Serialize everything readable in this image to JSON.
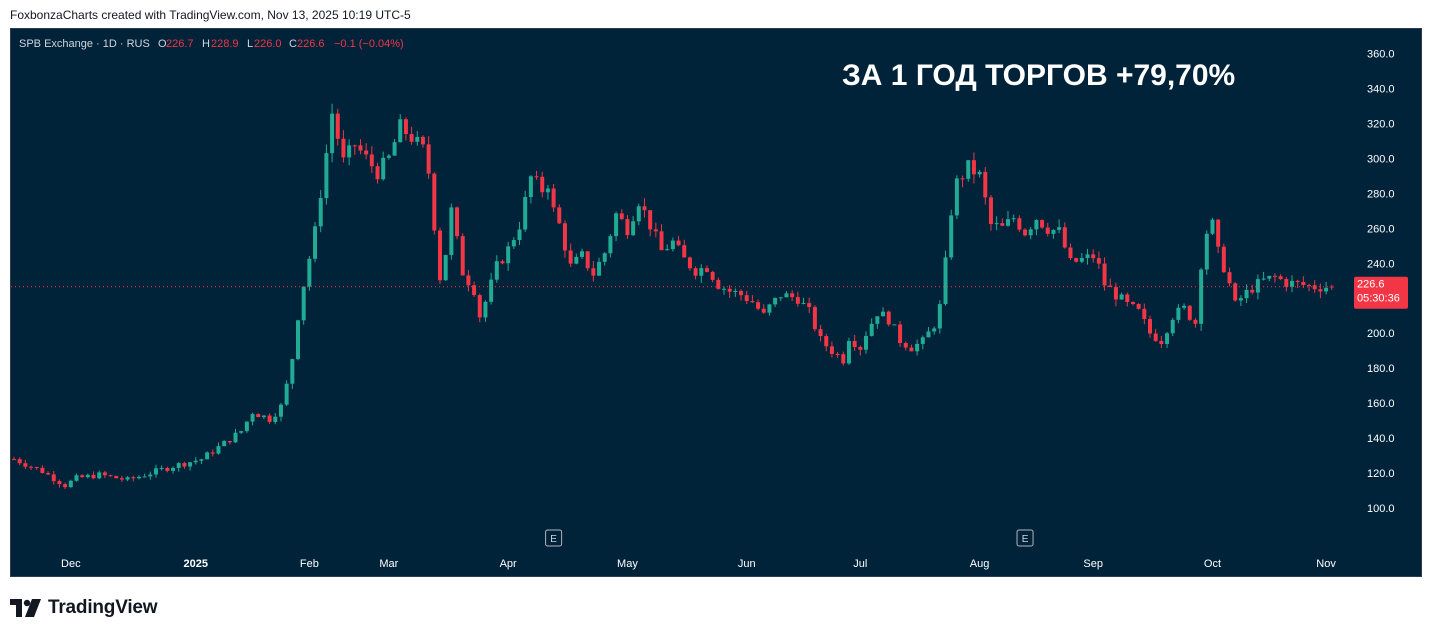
{
  "header": {
    "attribution": "FoxbonzaCharts created with TradingView.com, Nov 13, 2025 10:19 UTC-5"
  },
  "legend": {
    "symbol": "SPB Exchange · 1D · RUS",
    "o_label": "O",
    "o_value": "226.7",
    "h_label": "H",
    "h_value": "228.9",
    "l_label": "L",
    "l_value": "226.0",
    "c_label": "C",
    "c_value": "226.6",
    "change": "−0.1 (−0.04%)"
  },
  "annotation": "ЗА 1 ГОД ТОРГОВ +79,70%",
  "price_marker": {
    "price": "226.6",
    "countdown": "05:30:36"
  },
  "earnings_marker": "E",
  "footer": {
    "brand": "TradingView"
  },
  "colors": {
    "background": "#00233a",
    "up": "#22ab94",
    "down": "#f23645",
    "axis_text": "#ffffff",
    "price_line": "#f23645"
  },
  "chart_data": {
    "type": "candlestick",
    "title": "ЗА 1 ГОД ТОРГОВ +79,70%",
    "symbol": "SPB Exchange · 1D · RUS",
    "y_ticks": [
      "100.0",
      "120.0",
      "140.0",
      "160.0",
      "180.0",
      "200.0",
      "220.0",
      "240.0",
      "260.0",
      "280.0",
      "300.0",
      "320.0",
      "340.0",
      "360.0"
    ],
    "ylim": [
      88,
      366
    ],
    "x_labels": [
      "Dec",
      "2025",
      "Feb",
      "Mar",
      "Apr",
      "May",
      "Jun",
      "Jul",
      "Aug",
      "Sep",
      "Oct",
      "Nov"
    ],
    "x_label_bars": [
      10,
      32,
      52,
      66,
      87,
      108,
      129,
      149,
      170,
      190,
      211,
      231
    ],
    "earnings_bars": [
      95,
      178
    ],
    "last_price": 226.6,
    "bar_count": 233,
    "price_keypoints": [
      [
        0,
        128
      ],
      [
        5,
        121
      ],
      [
        9,
        113
      ],
      [
        11,
        117
      ],
      [
        15,
        119
      ],
      [
        20,
        116
      ],
      [
        24,
        120
      ],
      [
        28,
        124
      ],
      [
        33,
        128
      ],
      [
        37,
        137
      ],
      [
        40,
        144
      ],
      [
        42,
        155
      ],
      [
        45,
        151
      ],
      [
        47,
        158
      ],
      [
        48,
        170
      ],
      [
        49,
        186
      ],
      [
        50,
        210
      ],
      [
        51,
        228
      ],
      [
        53,
        258
      ],
      [
        55,
        303
      ],
      [
        56,
        326
      ],
      [
        58,
        298
      ],
      [
        60,
        308
      ],
      [
        62,
        300
      ],
      [
        64,
        292
      ],
      [
        66,
        300
      ],
      [
        68,
        318
      ],
      [
        70,
        312
      ],
      [
        72,
        305
      ],
      [
        73,
        292
      ],
      [
        74,
        262
      ],
      [
        75,
        232
      ],
      [
        76,
        246
      ],
      [
        77,
        270
      ],
      [
        79,
        235
      ],
      [
        81,
        225
      ],
      [
        82,
        210
      ],
      [
        83,
        218
      ],
      [
        85,
        238
      ],
      [
        87,
        248
      ],
      [
        89,
        262
      ],
      [
        91,
        289
      ],
      [
        93,
        282
      ],
      [
        94,
        286
      ],
      [
        95,
        270
      ],
      [
        96,
        262
      ],
      [
        98,
        238
      ],
      [
        100,
        244
      ],
      [
        102,
        234
      ],
      [
        104,
        246
      ],
      [
        106,
        268
      ],
      [
        108,
        260
      ],
      [
        110,
        276
      ],
      [
        112,
        262
      ],
      [
        114,
        247
      ],
      [
        116,
        252
      ],
      [
        118,
        242
      ],
      [
        120,
        236
      ],
      [
        122,
        238
      ],
      [
        124,
        228
      ],
      [
        126,
        224
      ],
      [
        128,
        222
      ],
      [
        130,
        218
      ],
      [
        132,
        210
      ],
      [
        133,
        215
      ],
      [
        135,
        222
      ],
      [
        138,
        220
      ],
      [
        140,
        212
      ],
      [
        142,
        196
      ],
      [
        144,
        190
      ],
      [
        146,
        185
      ],
      [
        147,
        198
      ],
      [
        149,
        192
      ],
      [
        150,
        200
      ],
      [
        152,
        212
      ],
      [
        154,
        208
      ],
      [
        156,
        196
      ],
      [
        158,
        192
      ],
      [
        160,
        195
      ],
      [
        162,
        205
      ],
      [
        163,
        215
      ],
      [
        164,
        240
      ],
      [
        165,
        270
      ],
      [
        166,
        286
      ],
      [
        168,
        295
      ],
      [
        170,
        290
      ],
      [
        172,
        262
      ],
      [
        174,
        260
      ],
      [
        176,
        266
      ],
      [
        178,
        258
      ],
      [
        180,
        266
      ],
      [
        182,
        260
      ],
      [
        184,
        258
      ],
      [
        186,
        240
      ],
      [
        188,
        242
      ],
      [
        190,
        244
      ],
      [
        191,
        238
      ],
      [
        192,
        228
      ],
      [
        194,
        222
      ],
      [
        196,
        216
      ],
      [
        198,
        212
      ],
      [
        200,
        200
      ],
      [
        202,
        196
      ],
      [
        204,
        210
      ],
      [
        206,
        214
      ],
      [
        208,
        206
      ],
      [
        209,
        240
      ],
      [
        210,
        258
      ],
      [
        211,
        262
      ],
      [
        212,
        246
      ],
      [
        213,
        238
      ],
      [
        214,
        228
      ],
      [
        215,
        216
      ],
      [
        216,
        220
      ],
      [
        218,
        226
      ],
      [
        220,
        230
      ],
      [
        222,
        232
      ],
      [
        224,
        229
      ],
      [
        226,
        228
      ],
      [
        228,
        227
      ],
      [
        229,
        226.6
      ]
    ]
  }
}
